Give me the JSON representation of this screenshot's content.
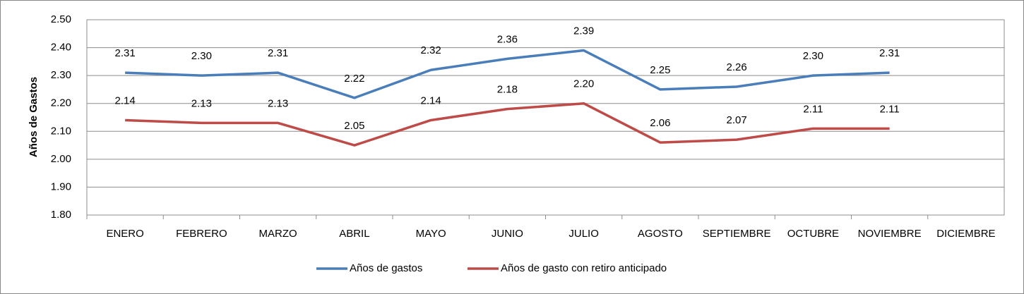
{
  "chart_data": {
    "type": "line",
    "y_label": "Años de Gastos",
    "categories": [
      "ENERO",
      "FEBRERO",
      "MARZO",
      "ABRIL",
      "MAYO",
      "JUNIO",
      "JULIO",
      "AGOSTO",
      "SEPTIEMBRE",
      "OCTUBRE",
      "NOVIEMBRE",
      "DICIEMBRE"
    ],
    "series": [
      {
        "name": "Años de gastos",
        "color": "#4a7ebb",
        "values": [
          2.31,
          2.3,
          2.31,
          2.22,
          2.32,
          2.36,
          2.39,
          2.25,
          2.26,
          2.3,
          2.31,
          null
        ],
        "value_labels": [
          "2.31",
          "2.30",
          "2.31",
          "2.22",
          "2.32",
          "2.36",
          "2.39",
          "2.25",
          "2.26",
          "2.30",
          "2.31",
          null
        ]
      },
      {
        "name": "Años de gasto con retiro anticipado",
        "color": "#be4b48",
        "values": [
          2.14,
          2.13,
          2.13,
          2.05,
          2.14,
          2.18,
          2.2,
          2.06,
          2.07,
          2.11,
          2.11,
          null
        ],
        "value_labels": [
          "2.14",
          "2.13",
          "2.13",
          "2.05",
          "2.14",
          "2.18",
          "2.20",
          "2.06",
          "2.07",
          "2.11",
          "2.11",
          null
        ]
      }
    ],
    "ylim": [
      1.8,
      2.5
    ],
    "yticks": [
      {
        "value": 1.8,
        "label": "1.80"
      },
      {
        "value": 1.9,
        "label": "1.90"
      },
      {
        "value": 2.0,
        "label": "2.00"
      },
      {
        "value": 2.1,
        "label": "2.10"
      },
      {
        "value": 2.2,
        "label": "2.20"
      },
      {
        "value": 2.3,
        "label": "2.30"
      },
      {
        "value": 2.4,
        "label": "2.40"
      },
      {
        "value": 2.5,
        "label": "2.50"
      }
    ],
    "grid": true,
    "legend": "bottom"
  }
}
